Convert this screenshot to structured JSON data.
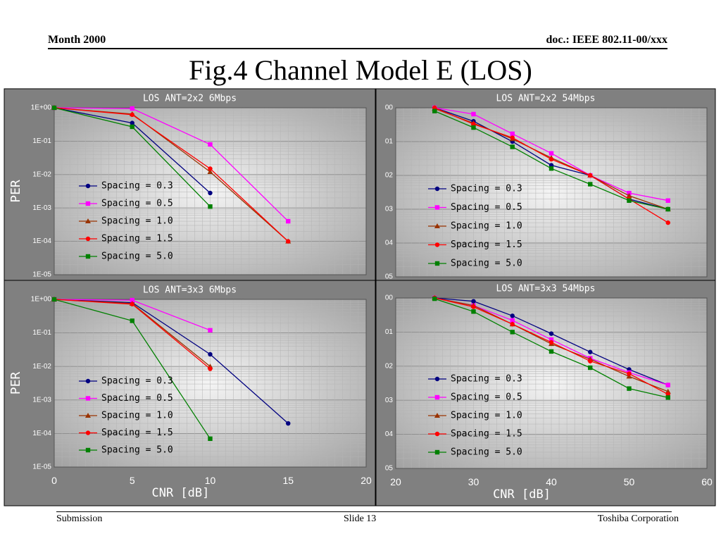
{
  "header": {
    "left": "Month 2000",
    "right": "doc.: IEEE 802.11-00/xxx"
  },
  "title": "Fig.4  Channel Model E (LOS)",
  "footer": {
    "left": "Submission",
    "center": "Slide 13",
    "right": "Toshiba Corporation"
  },
  "colors": {
    "frame": "#808080",
    "plot": "#c0c0c0",
    "s03": "#000080",
    "s05": "#ff00ff",
    "s10": "#993300",
    "s15": "#ff0000",
    "s50": "#008000"
  },
  "chart_data": [
    {
      "type": "line",
      "title": "LOS ANT=2x2 6Mbps",
      "ylabel": "PER",
      "xlabel": "",
      "yscale": "log",
      "ylim": [
        1e-05,
        1
      ],
      "xlim": [
        0,
        20
      ],
      "ytick_labels": [
        "1E+00",
        "1E-01",
        "1E-02",
        "1E-03",
        "1E-04",
        "1E-05"
      ],
      "xtick_labels": [],
      "legend": "center-left",
      "series": [
        {
          "name": "Spacing = 0.3",
          "x": [
            0,
            5,
            10
          ],
          "y": [
            1.0,
            0.35,
            0.0028
          ]
        },
        {
          "name": "Spacing = 0.5",
          "x": [
            0,
            5,
            10,
            15
          ],
          "y": [
            1.0,
            0.95,
            0.08,
            0.0004
          ]
        },
        {
          "name": "Spacing = 1.0",
          "x": [
            0,
            5,
            10,
            15
          ],
          "y": [
            1.0,
            0.65,
            0.012,
            0.0001
          ]
        },
        {
          "name": "Spacing = 1.5",
          "x": [
            0,
            5,
            10,
            15
          ],
          "y": [
            1.0,
            0.62,
            0.015,
            0.0001
          ]
        },
        {
          "name": "Spacing = 5.0",
          "x": [
            0,
            5,
            10
          ],
          "y": [
            1.0,
            0.27,
            0.0011
          ]
        }
      ]
    },
    {
      "type": "line",
      "title": "LOS ANT=2x2 54Mbps",
      "ylabel": "",
      "xlabel": "",
      "yscale": "log",
      "ylim": [
        1e-05,
        1
      ],
      "xlim": [
        20,
        60
      ],
      "ytick_labels": [
        "00",
        "01",
        "02",
        "03",
        "04",
        "05"
      ],
      "xtick_labels": [],
      "legend": "center-left",
      "series": [
        {
          "name": "Spacing = 0.3",
          "x": [
            25,
            30,
            35,
            40,
            45,
            50,
            55
          ],
          "y": [
            1.0,
            0.4,
            0.1,
            0.02,
            0.01,
            0.002,
            0.001
          ]
        },
        {
          "name": "Spacing = 0.5",
          "x": [
            25,
            30,
            35,
            40,
            45,
            50,
            55
          ],
          "y": [
            1.0,
            0.65,
            0.17,
            0.045,
            0.01,
            0.003,
            0.0018
          ]
        },
        {
          "name": "Spacing = 1.0",
          "x": [
            25,
            30,
            35,
            40,
            45,
            50,
            55
          ],
          "y": [
            0.95,
            0.35,
            0.12,
            0.033,
            0.01,
            0.0025,
            0.001
          ]
        },
        {
          "name": "Spacing = 1.5",
          "x": [
            25,
            30,
            35,
            40,
            45,
            50,
            55
          ],
          "y": [
            1.0,
            0.33,
            0.13,
            0.03,
            0.01,
            0.002,
            0.0004
          ]
        },
        {
          "name": "Spacing = 5.0",
          "x": [
            25,
            30,
            35,
            40,
            45,
            50,
            55
          ],
          "y": [
            0.8,
            0.26,
            0.07,
            0.016,
            0.0055,
            0.0018,
            0.001
          ]
        }
      ]
    },
    {
      "type": "line",
      "title": "LOS ANT=3x3 6Mbps",
      "ylabel": "PER",
      "xlabel": "CNR [dB]",
      "yscale": "log",
      "ylim": [
        1e-05,
        1
      ],
      "xlim": [
        0,
        20
      ],
      "ytick_labels": [
        "1E+00",
        "1E-01",
        "1E-02",
        "1E-03",
        "1E-04",
        "1E-05"
      ],
      "xtick_labels": [
        "0",
        "5",
        "10",
        "15",
        "20"
      ],
      "legend": "center-left",
      "series": [
        {
          "name": "Spacing = 0.3",
          "x": [
            0,
            5,
            10,
            15
          ],
          "y": [
            1.0,
            0.8,
            0.023,
            0.0002
          ]
        },
        {
          "name": "Spacing = 0.5",
          "x": [
            0,
            5,
            10
          ],
          "y": [
            1.0,
            0.95,
            0.12
          ]
        },
        {
          "name": "Spacing = 1.0",
          "x": [
            0,
            5,
            10
          ],
          "y": [
            1.0,
            0.75,
            0.01
          ]
        },
        {
          "name": "Spacing = 1.5",
          "x": [
            0,
            5,
            10
          ],
          "y": [
            1.0,
            0.72,
            0.0085
          ]
        },
        {
          "name": "Spacing = 5.0",
          "x": [
            0,
            5,
            10
          ],
          "y": [
            1.0,
            0.23,
            7e-05
          ]
        }
      ]
    },
    {
      "type": "line",
      "title": "LOS ANT=3x3 54Mbps",
      "ylabel": "",
      "xlabel": "CNR [dB]",
      "yscale": "log",
      "ylim": [
        1e-05,
        1
      ],
      "xlim": [
        20,
        60
      ],
      "ytick_labels": [
        "00",
        "01",
        "02",
        "03",
        "04",
        "05"
      ],
      "xtick_labels": [
        "20",
        "30",
        "40",
        "50",
        "60"
      ],
      "legend": "center-left",
      "series": [
        {
          "name": "Spacing = 0.3",
          "x": [
            25,
            30,
            35,
            40,
            45,
            50,
            55
          ],
          "y": [
            1.0,
            0.8,
            0.3,
            0.09,
            0.026,
            0.008,
            0.0028
          ]
        },
        {
          "name": "Spacing = 0.5",
          "x": [
            25,
            30,
            35,
            40,
            45,
            50,
            55
          ],
          "y": [
            1.0,
            0.6,
            0.22,
            0.06,
            0.017,
            0.0065,
            0.0028
          ]
        },
        {
          "name": "Spacing = 1.0",
          "x": [
            25,
            30,
            35,
            40,
            45,
            50,
            55
          ],
          "y": [
            1.0,
            0.6,
            0.17,
            0.045,
            0.016,
            0.005,
            0.0018
          ]
        },
        {
          "name": "Spacing = 1.5",
          "x": [
            25,
            30,
            35,
            40,
            45,
            50,
            55
          ],
          "y": [
            1.0,
            0.55,
            0.17,
            0.05,
            0.014,
            0.006,
            0.0015
          ]
        },
        {
          "name": "Spacing = 5.0",
          "x": [
            25,
            30,
            35,
            40,
            45,
            50,
            55
          ],
          "y": [
            0.95,
            0.4,
            0.1,
            0.027,
            0.009,
            0.0022,
            0.0012
          ]
        }
      ]
    }
  ]
}
